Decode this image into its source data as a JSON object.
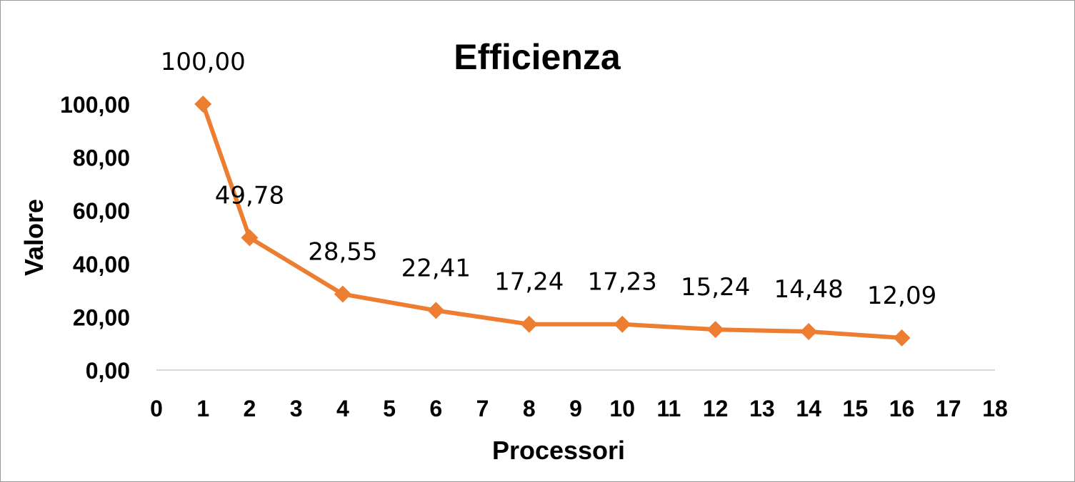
{
  "chart_data": {
    "type": "line",
    "title": "Efficienza",
    "xlabel": "Processori",
    "ylabel": "Valore",
    "xlim": [
      0,
      18
    ],
    "ylim": [
      0,
      100
    ],
    "x_ticks": [
      "0",
      "1",
      "2",
      "3",
      "4",
      "5",
      "6",
      "7",
      "8",
      "9",
      "10",
      "11",
      "12",
      "13",
      "14",
      "15",
      "16",
      "17",
      "18"
    ],
    "y_ticks": [
      "0,00",
      "20,00",
      "40,00",
      "60,00",
      "80,00",
      "100,00"
    ],
    "grid": false,
    "legend": "none",
    "series": [
      {
        "color": "#ED7D31",
        "marker": "diamond",
        "x": [
          1,
          2,
          4,
          6,
          8,
          10,
          12,
          14,
          16
        ],
        "values": [
          100.0,
          49.78,
          28.55,
          22.41,
          17.24,
          17.23,
          15.24,
          14.48,
          12.09
        ],
        "labels": [
          "100,00",
          "49,78",
          "28,55",
          "22,41",
          "17,24",
          "17,23",
          "15,24",
          "14,48",
          "12,09"
        ]
      }
    ]
  }
}
